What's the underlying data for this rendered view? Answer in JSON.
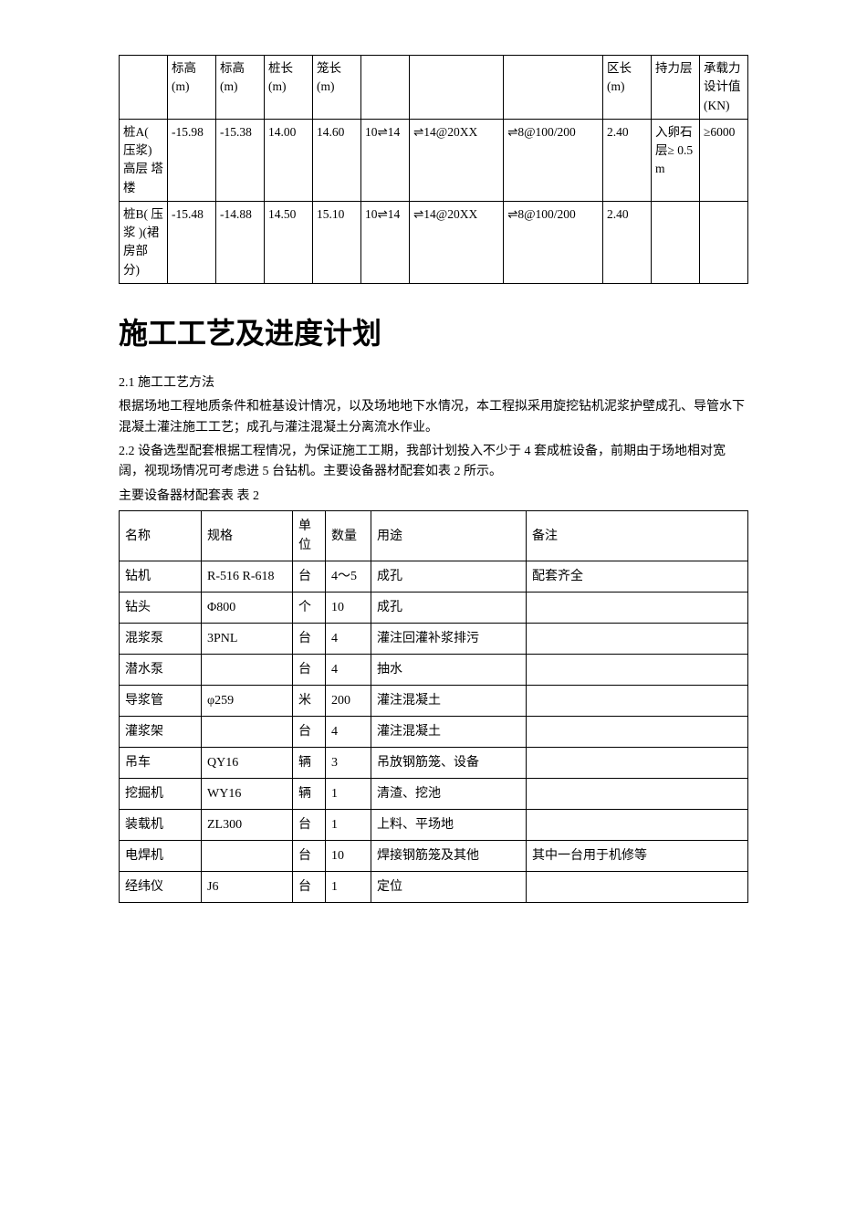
{
  "table1": {
    "headers": [
      "",
      "标高(m)",
      "标高(m)",
      "桩长(m)",
      "笼长(m)",
      "",
      "",
      "",
      "区长(m)",
      "持力层",
      "承载力设计值(KN)"
    ],
    "rows": [
      {
        "c0": "桩A( 压浆)高层 塔楼",
        "c1": "-15.98",
        "c2": "-15.38",
        "c3": "14.00",
        "c4": "14.60",
        "c5": "10⇌14",
        "c6": "⇌14@20XX",
        "c7": "⇌8@100/200",
        "c8": "2.40",
        "c9": "入卵石层≥ 0.5m",
        "c10": "≥6000"
      },
      {
        "c0": "桩B( 压浆  )(裙房部分)",
        "c1": "-15.48",
        "c2": "-14.88",
        "c3": "14.50",
        "c4": "15.10",
        "c5": "10⇌14",
        "c6": "⇌14@20XX",
        "c7": "⇌8@100/200",
        "c8": "2.40",
        "c9": "",
        "c10": ""
      }
    ]
  },
  "section_title": "施工工艺及进度计划",
  "para_2_1_label": "2.1 施工工艺方法",
  "para_2_1_body": "根据场地工程地质条件和桩基设计情况，以及场地地下水情况，本工程拟采用旋挖钻机泥浆护壁成孔、导管水下混凝土灌注施工工艺；成孔与灌注混凝土分离流水作业。",
  "para_2_2_body": "2.2 设备选型配套根据工程情况，为保证施工工期，我部计划投入不少于 4 套成桩设备，前期由于场地相对宽阔，视现场情况可考虑进 5 台钻机。主要设备器材配套如表 2 所示。",
  "table2_caption": "主要设备器材配套表 表 2",
  "table2": {
    "headers": [
      "名称",
      "规格",
      "单位",
      "数量",
      "用途",
      "备注"
    ],
    "rows": [
      {
        "name": "钻机",
        "spec": "R-516   R-618",
        "unit": "台",
        "qty": "4～5",
        "use": "成孔",
        "note": "配套齐全"
      },
      {
        "name": "钻头",
        "spec": "Φ800",
        "unit": "个",
        "qty": "10",
        "use": "成孔",
        "note": ""
      },
      {
        "name": "混浆泵",
        "spec": "3PNL",
        "unit": "台",
        "qty": "4",
        "use": "灌注回灌补浆排污",
        "note": ""
      },
      {
        "name": "潜水泵",
        "spec": "",
        "unit": "台",
        "qty": "4",
        "use": "抽水",
        "note": ""
      },
      {
        "name": "导浆管",
        "spec": "φ259",
        "unit": "米",
        "qty": "200",
        "use": "灌注混凝土",
        "note": ""
      },
      {
        "name": "灌浆架",
        "spec": "",
        "unit": "台",
        "qty": "4",
        "use": "灌注混凝土",
        "note": ""
      },
      {
        "name": "吊车",
        "spec": "QY16",
        "unit": "辆",
        "qty": "3",
        "use": "吊放钢筋笼、设备",
        "note": ""
      },
      {
        "name": "挖掘机",
        "spec": "WY16",
        "unit": "辆",
        "qty": "1",
        "use": "清渣、挖池",
        "note": ""
      },
      {
        "name": "装载机",
        "spec": "ZL300",
        "unit": "台",
        "qty": "1",
        "use": "上料、平场地",
        "note": ""
      },
      {
        "name": "电焊机",
        "spec": "",
        "unit": "台",
        "qty": "10",
        "use": "焊接钢筋笼及其他",
        "note": "其中一台用于机修等"
      },
      {
        "name": "经纬仪",
        "spec": "J6",
        "unit": "台",
        "qty": "1",
        "use": "定位",
        "note": ""
      }
    ]
  }
}
